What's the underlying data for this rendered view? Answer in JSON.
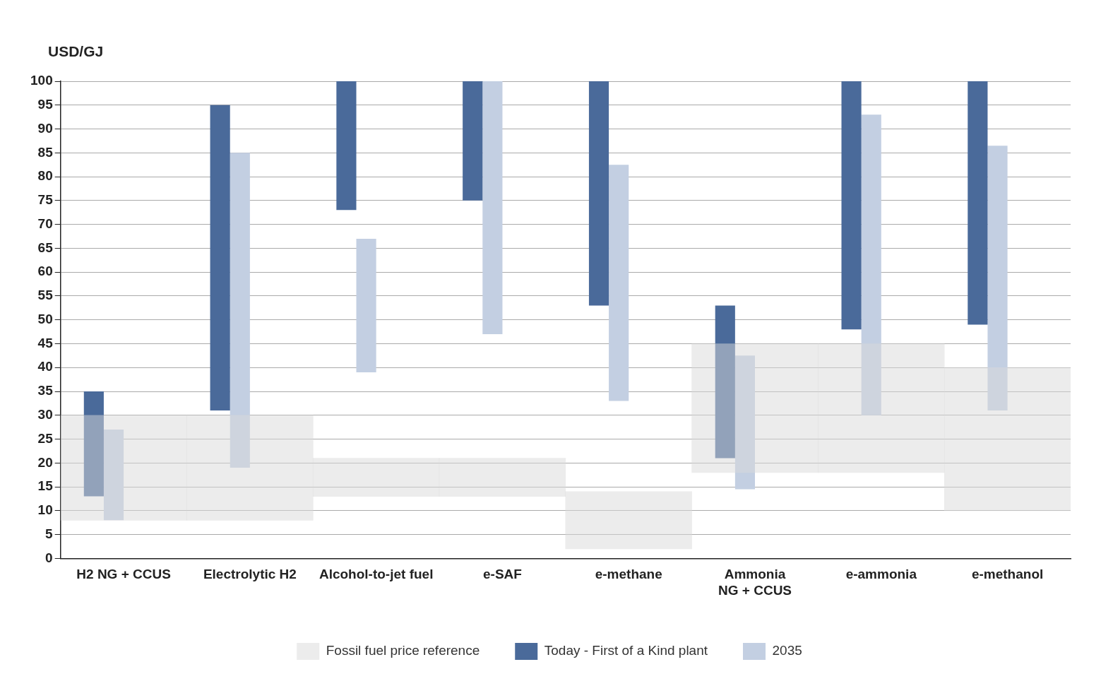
{
  "chart_data": {
    "type": "bar",
    "ylabel": "USD/GJ",
    "categories": [
      "H2 NG + CCUS",
      "Electrolytic H2",
      "Alcohol-to-jet fuel",
      "e-SAF",
      "e-methane",
      "Ammonia NG + CCUS",
      "e-ammonia",
      "e-methanol"
    ],
    "series": [
      {
        "name": "Today - First of a Kind plant",
        "color": "#4a6a9a",
        "base": [
          13,
          31,
          73,
          75,
          53,
          21,
          48,
          49
        ],
        "values": [
          22,
          64,
          27,
          25,
          47,
          32,
          52,
          51
        ]
      },
      {
        "name": "2035",
        "color": "#c3cfe2",
        "base": [
          8,
          19,
          39,
          47,
          33,
          14.5,
          30,
          31
        ],
        "values": [
          19,
          66,
          28,
          53,
          49.5,
          28,
          63,
          55.5
        ]
      },
      {
        "name": "Fossil fuel price reference",
        "color": "#d9d9d9",
        "base": [
          8,
          8,
          13,
          13,
          2,
          18,
          18,
          10
        ],
        "values": [
          22,
          22,
          8,
          8,
          12,
          27,
          27,
          30
        ]
      }
    ],
    "ylim": [
      0,
      100
    ],
    "yticks": [
      0,
      5,
      10,
      15,
      20,
      25,
      30,
      35,
      40,
      45,
      50,
      55,
      60,
      65,
      70,
      75,
      80,
      85,
      90,
      95,
      100
    ],
    "grid": "y",
    "legend": "bottom"
  }
}
